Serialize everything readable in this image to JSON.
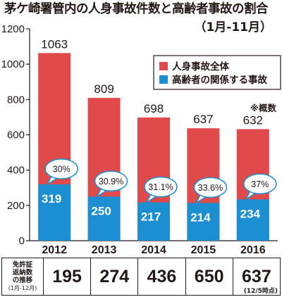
{
  "title": "茅ケ崎署管内の人身事故件数と高齢者事故の割合",
  "subtitle": "（1月-11月）",
  "colors": {
    "total": "#e04a4b",
    "elderly": "#1b8fd2",
    "text": "#231815"
  },
  "chart_data": {
    "type": "bar",
    "categories": [
      "2012",
      "2013",
      "2014",
      "2015",
      "2016"
    ],
    "series": [
      {
        "name": "人身事故全体",
        "values": [
          1063,
          809,
          698,
          637,
          632
        ]
      },
      {
        "name": "高齢者の関係する事故",
        "values": [
          319,
          250,
          217,
          214,
          234
        ]
      }
    ],
    "elderly_share_labels": [
      "30%",
      "30.9%",
      "31.1%",
      "33.6%",
      "37%"
    ],
    "yticks": [
      "0",
      "200",
      "400",
      "600",
      "800",
      "1000",
      "1200"
    ],
    "ylim": [
      0,
      1200
    ],
    "legend_position": "top-right",
    "note": "※概数"
  },
  "table": {
    "row_header_lines": [
      "免許証",
      "返納数",
      "の推移"
    ],
    "row_header_sub": "(1月-12月)",
    "values": [
      "195",
      "274",
      "436",
      "650",
      "637"
    ],
    "last_value_note": "(12/5時点)"
  }
}
